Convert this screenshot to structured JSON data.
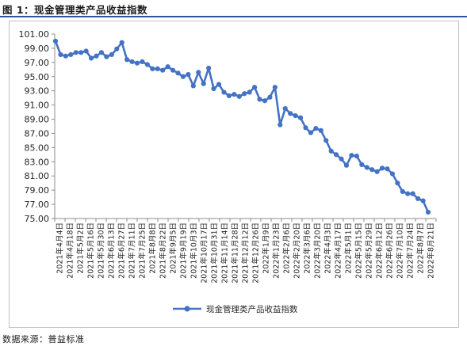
{
  "figure_title": "图 1：现金管理类产品收益指数",
  "source": "数据来源：普益标准",
  "colors": {
    "series": "#4472c4",
    "title_rule": "#2f5597",
    "frame": "#bfbfbf"
  },
  "chart_data": {
    "type": "line",
    "title": "",
    "xlabel": "",
    "ylabel": "",
    "ylim": [
      75,
      101
    ],
    "yticks": [
      "101.00",
      "99.00",
      "97.00",
      "95.00",
      "93.00",
      "91.00",
      "89.00",
      "87.00",
      "85.00",
      "83.00",
      "81.00",
      "79.00",
      "77.00",
      "75.00"
    ],
    "grid": false,
    "legend_position": "bottom",
    "xtick_labels": [
      "2021年4月4日",
      "2021年4月18日",
      "2021年5月2日",
      "2021年5月16日",
      "2021年5月30日",
      "2021年6月13日",
      "2021年6月27日",
      "2021年7月11日",
      "2021年7月25日",
      "2021年8月8日",
      "2021年8月22日",
      "2021年9月5日",
      "2021年9月19日",
      "2021年10月3日",
      "2021年10月17日",
      "2021年10月31日",
      "2021年11月14日",
      "2021年11月28日",
      "2021年12月12日",
      "2021年12月26日",
      "2022年1月9日",
      "2022年1月23日",
      "2022年2月6日",
      "2022年2月20日",
      "2022年3月6日",
      "2022年3月20日",
      "2022年4月3日",
      "2022年4月17日",
      "2022年5月1日",
      "2022年5月15日",
      "2022年5月29日",
      "2022年6月12日",
      "2022年6月26日",
      "2022年7月10日",
      "2022年7月24日",
      "2022年8月7日",
      "2022年8月21日"
    ],
    "series": [
      {
        "name": "现金管理类产品收益指数",
        "values": [
          100.0,
          98.1,
          97.9,
          98.1,
          98.4,
          98.4,
          98.6,
          97.6,
          97.9,
          98.4,
          97.8,
          98.1,
          98.9,
          99.8,
          97.4,
          97.1,
          96.9,
          97.1,
          96.7,
          96.1,
          96.1,
          95.9,
          96.4,
          95.9,
          95.5,
          95.0,
          95.3,
          93.7,
          95.6,
          94.0,
          96.2,
          93.3,
          93.9,
          92.8,
          92.3,
          92.5,
          92.2,
          92.6,
          92.8,
          93.5,
          91.8,
          91.6,
          92.1,
          93.5,
          88.2,
          90.5,
          89.8,
          89.5,
          89.2,
          87.8,
          87.1,
          87.7,
          87.4,
          86.0,
          84.5,
          84.0,
          83.4,
          82.5,
          83.9,
          83.8,
          82.6,
          82.2,
          81.9,
          81.6,
          82.1,
          82.0,
          81.3,
          80.0,
          78.8,
          78.5,
          78.5,
          77.8,
          77.5,
          75.9
        ]
      }
    ]
  }
}
